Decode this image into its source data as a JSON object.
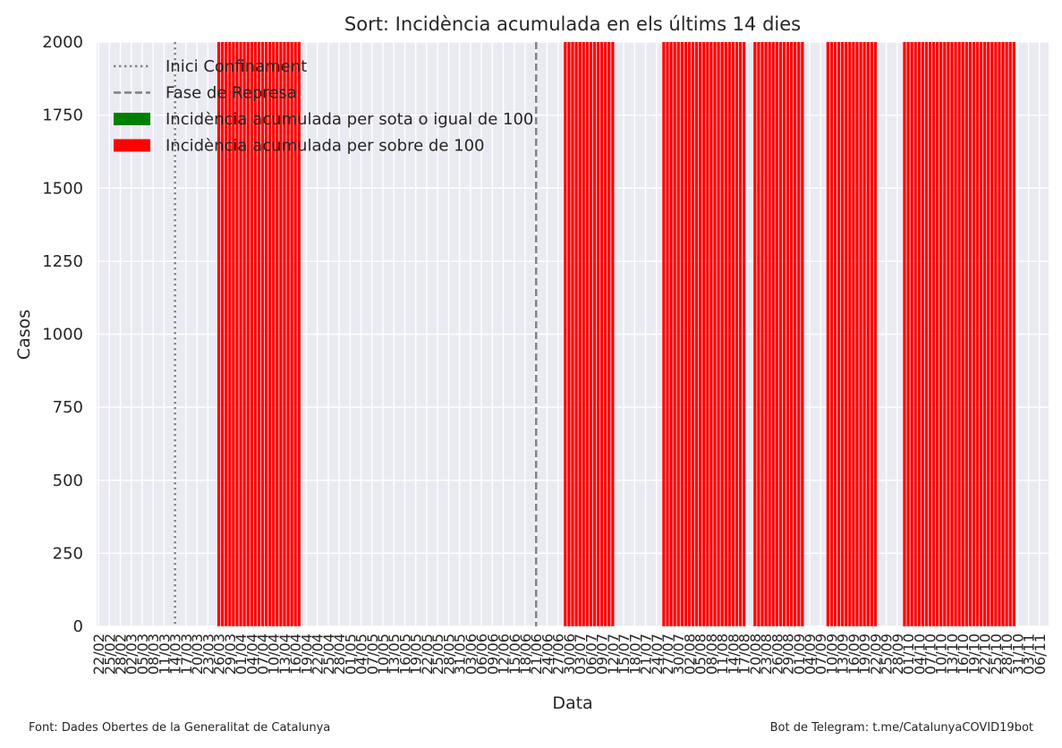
{
  "footer": {
    "source": "Font: Dades Obertes de la Generalitat de Catalunya",
    "bot": "Bot de Telegram: t.me/CatalunyaCOVID19bot"
  },
  "colors": {
    "plot_bg": "#EAEAF2",
    "grid": "#FFFFFF",
    "bar_over": "#FF0000",
    "bar_under": "#008000",
    "ref_line": "#808080",
    "text": "#262626"
  },
  "chart_data": {
    "type": "bar",
    "title": "Sort: Incidència acumulada en els últims 14 dies",
    "xlabel": "Data",
    "ylabel": "Casos",
    "ylim": [
      0,
      2000
    ],
    "yticks": [
      0,
      250,
      500,
      750,
      1000,
      1250,
      1500,
      1750,
      2000
    ],
    "grid": true,
    "legend_position": "top-left",
    "start_date": "2020-02-22",
    "end_date": "2020-11-08",
    "tick_labels": [
      "22/02",
      "25/02",
      "28/02",
      "02/03",
      "05/03",
      "08/03",
      "11/03",
      "14/03",
      "17/03",
      "20/03",
      "23/03",
      "26/03",
      "29/03",
      "01/04",
      "04/04",
      "07/04",
      "10/04",
      "13/04",
      "16/04",
      "19/04",
      "22/04",
      "25/04",
      "28/04",
      "01/05",
      "04/05",
      "07/05",
      "10/05",
      "13/05",
      "16/05",
      "19/05",
      "22/05",
      "25/05",
      "28/05",
      "31/05",
      "03/06",
      "06/06",
      "09/06",
      "12/06",
      "15/06",
      "18/06",
      "21/06",
      "24/06",
      "27/06",
      "30/06",
      "03/07",
      "06/07",
      "09/07",
      "12/07",
      "15/07",
      "18/07",
      "21/07",
      "24/07",
      "27/07",
      "30/07",
      "02/08",
      "05/08",
      "08/08",
      "11/08",
      "14/08",
      "17/08",
      "20/08",
      "23/08",
      "26/08",
      "29/08",
      "01/09",
      "04/09",
      "07/09",
      "10/09",
      "13/09",
      "16/09",
      "19/09",
      "22/09",
      "25/09",
      "28/09",
      "01/10",
      "04/10",
      "07/10",
      "10/10",
      "13/10",
      "16/10",
      "19/10",
      "22/10",
      "25/10",
      "28/10",
      "31/10",
      "03/11",
      "06/11"
    ],
    "reference_lines": [
      {
        "name": "Inici Confinament",
        "date": "2020-03-14",
        "style": "dotted"
      },
      {
        "name": "Fase de Represa",
        "date": "2020-06-21",
        "style": "dashed"
      }
    ],
    "series": [
      {
        "name": "Incidència acumulada per sota o igual de 100",
        "color": "#008000",
        "periods": []
      },
      {
        "name": "Incidència acumulada per sobre de 100",
        "color": "#FF0000",
        "periods": [
          {
            "start": "2020-03-26",
            "end": "2020-04-17",
            "value": 2000
          },
          {
            "start": "2020-06-29",
            "end": "2020-07-12",
            "value": 2000
          },
          {
            "start": "2020-07-26",
            "end": "2020-08-17",
            "value": 2000
          },
          {
            "start": "2020-08-20",
            "end": "2020-09-02",
            "value": 2000
          },
          {
            "start": "2020-09-09",
            "end": "2020-09-22",
            "value": 2000
          },
          {
            "start": "2020-09-30",
            "end": "2020-10-30",
            "value": 2000
          }
        ]
      }
    ]
  }
}
